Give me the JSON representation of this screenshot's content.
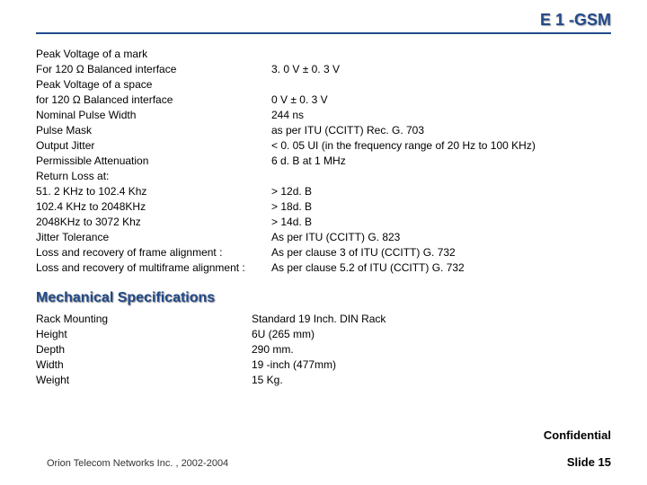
{
  "header": {
    "title": "E 1 -GSM"
  },
  "specs": [
    {
      "l": "Peak Voltage of a mark",
      "r": ""
    },
    {
      "l": "For 120 Ω Balanced interface",
      "r": "3. 0 V ±  0. 3 V"
    },
    {
      "l": "Peak Voltage of a space",
      "r": ""
    },
    {
      "l": "for 120 Ω Balanced interface",
      "r": "0 V ±  0. 3 V"
    },
    {
      "l": "Nominal Pulse Width",
      "r": "244 ns"
    },
    {
      "l": "Pulse Mask",
      "r": "as  per  ITU (CCITT)  Rec.  G. 703"
    },
    {
      "l": "Output Jitter",
      "r": "<  0. 05 UI (in  the  frequency  range of  20 Hz  to 100 KHz)"
    },
    {
      "l": "Permissible Attenuation",
      "r": "6 d. B  at  1 MHz"
    },
    {
      "l": "Return Loss at:",
      "r": ""
    },
    {
      "l": "51. 2 KHz to 102.4 Khz",
      "r": "> 12d. B"
    },
    {
      "l": "102.4 KHz to 2048KHz",
      "r": "> 18d. B"
    },
    {
      "l": "2048KHz to 3072 Khz",
      "r": "> 14d. B"
    },
    {
      "l": "Jitter Tolerance",
      "r": "As  per  ITU (CCITT) G. 823"
    },
    {
      "l": "Loss and recovery of frame alignment :",
      "r": "As per clause 3 of ITU (CCITT) G. 732"
    },
    {
      "l": "Loss and recovery of multiframe alignment :",
      "r": "As per clause 5.2 of ITU (CCITT) G. 732"
    }
  ],
  "mechHeading": "Mechanical Specifications",
  "mech": [
    {
      "l": "Rack Mounting",
      "r": "Standard 19 Inch. DIN Rack"
    },
    {
      "l": "Height",
      "r": "6U (265 mm)"
    },
    {
      "l": "Depth",
      "r": "290 mm."
    },
    {
      "l": "Width",
      "r": "19 -inch (477mm)"
    },
    {
      "l": "Weight",
      "r": "15 Kg."
    }
  ],
  "confidential": "Confidential",
  "footerLeft": "Orion Telecom Networks Inc. , 2002-2004",
  "footerRight": "Slide 15"
}
